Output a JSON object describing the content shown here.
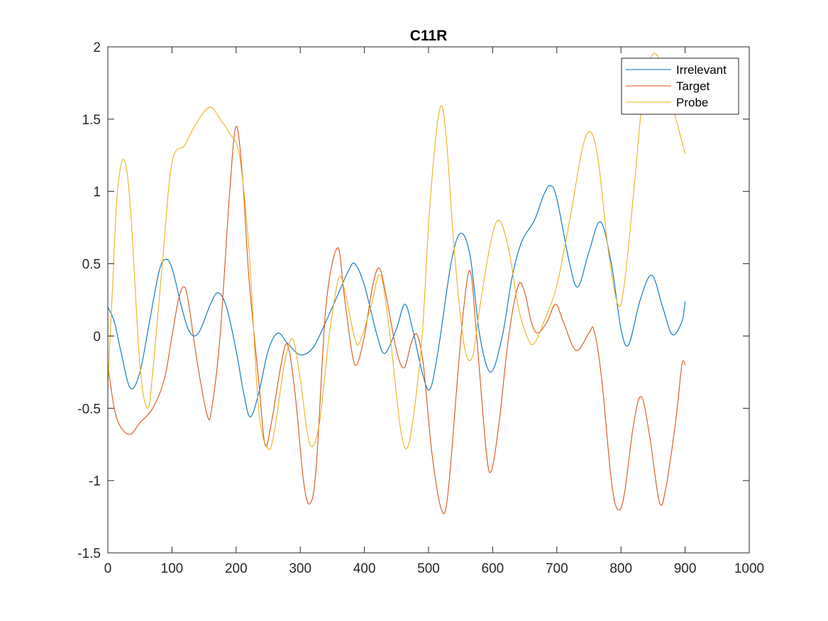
{
  "chart_data": {
    "type": "line",
    "title": "C11R",
    "xlabel": "",
    "ylabel": "",
    "xlim": [
      0,
      1000
    ],
    "ylim": [
      -1.5,
      2
    ],
    "xticks": [
      0,
      100,
      200,
      300,
      400,
      500,
      600,
      700,
      800,
      900,
      1000
    ],
    "yticks": [
      -1.5,
      -1,
      -0.5,
      0,
      0.5,
      1,
      1.5,
      2
    ],
    "xtick_labels": [
      "0",
      "100",
      "200",
      "300",
      "400",
      "500",
      "600",
      "700",
      "800",
      "900",
      "1000"
    ],
    "ytick_labels": [
      "-1.5",
      "-1",
      "-0.5",
      "0",
      "0.5",
      "1",
      "1.5",
      "2"
    ],
    "grid": false,
    "legend_position": "top-right",
    "series": [
      {
        "name": "Irrelevant",
        "color": "#0072BD",
        "points": [
          [
            0,
            0.2
          ],
          [
            10,
            0.1
          ],
          [
            20,
            -0.1
          ],
          [
            35,
            -0.36
          ],
          [
            50,
            -0.25
          ],
          [
            65,
            0.1
          ],
          [
            80,
            0.45
          ],
          [
            90,
            0.53
          ],
          [
            100,
            0.47
          ],
          [
            115,
            0.2
          ],
          [
            125,
            0.05
          ],
          [
            135,
            0.0
          ],
          [
            145,
            0.05
          ],
          [
            160,
            0.22
          ],
          [
            172,
            0.3
          ],
          [
            185,
            0.2
          ],
          [
            200,
            -0.1
          ],
          [
            212,
            -0.4
          ],
          [
            222,
            -0.56
          ],
          [
            235,
            -0.4
          ],
          [
            250,
            -0.1
          ],
          [
            265,
            0.02
          ],
          [
            280,
            -0.05
          ],
          [
            300,
            -0.13
          ],
          [
            320,
            -0.08
          ],
          [
            340,
            0.1
          ],
          [
            360,
            0.3
          ],
          [
            375,
            0.45
          ],
          [
            385,
            0.5
          ],
          [
            400,
            0.35
          ],
          [
            420,
            0.0
          ],
          [
            432,
            -0.12
          ],
          [
            450,
            0.05
          ],
          [
            463,
            0.22
          ],
          [
            475,
            0.05
          ],
          [
            490,
            -0.25
          ],
          [
            502,
            -0.37
          ],
          [
            515,
            -0.1
          ],
          [
            535,
            0.5
          ],
          [
            550,
            0.71
          ],
          [
            565,
            0.55
          ],
          [
            580,
            0.0
          ],
          [
            597,
            -0.25
          ],
          [
            615,
            0.0
          ],
          [
            630,
            0.4
          ],
          [
            645,
            0.65
          ],
          [
            665,
            0.8
          ],
          [
            680,
            0.98
          ],
          [
            690,
            1.04
          ],
          [
            700,
            0.95
          ],
          [
            720,
            0.5
          ],
          [
            733,
            0.34
          ],
          [
            750,
            0.58
          ],
          [
            768,
            0.79
          ],
          [
            785,
            0.5
          ],
          [
            800,
            0.05
          ],
          [
            812,
            -0.06
          ],
          [
            830,
            0.25
          ],
          [
            848,
            0.42
          ],
          [
            865,
            0.2
          ],
          [
            880,
            0.01
          ],
          [
            895,
            0.1
          ],
          [
            900,
            0.24
          ]
        ]
      },
      {
        "name": "Target",
        "color": "#D95319",
        "points": [
          [
            0,
            -0.2
          ],
          [
            10,
            -0.5
          ],
          [
            20,
            -0.63
          ],
          [
            35,
            -0.68
          ],
          [
            50,
            -0.6
          ],
          [
            70,
            -0.5
          ],
          [
            88,
            -0.3
          ],
          [
            100,
            0.0
          ],
          [
            110,
            0.25
          ],
          [
            118,
            0.34
          ],
          [
            125,
            0.25
          ],
          [
            140,
            -0.2
          ],
          [
            155,
            -0.55
          ],
          [
            162,
            -0.5
          ],
          [
            175,
            0.0
          ],
          [
            190,
            1.0
          ],
          [
            200,
            1.45
          ],
          [
            210,
            1.1
          ],
          [
            220,
            0.4
          ],
          [
            235,
            -0.3
          ],
          [
            245,
            -0.75
          ],
          [
            255,
            -0.6
          ],
          [
            270,
            -0.2
          ],
          [
            280,
            -0.06
          ],
          [
            292,
            -0.4
          ],
          [
            305,
            -1.0
          ],
          [
            315,
            -1.16
          ],
          [
            325,
            -0.9
          ],
          [
            340,
            0.2
          ],
          [
            358,
            0.61
          ],
          [
            368,
            0.3
          ],
          [
            380,
            -0.1
          ],
          [
            388,
            -0.2
          ],
          [
            400,
            0.0
          ],
          [
            413,
            0.35
          ],
          [
            423,
            0.47
          ],
          [
            433,
            0.3
          ],
          [
            450,
            -0.1
          ],
          [
            462,
            -0.22
          ],
          [
            473,
            -0.05
          ],
          [
            482,
            0.01
          ],
          [
            492,
            -0.2
          ],
          [
            505,
            -0.8
          ],
          [
            520,
            -1.2
          ],
          [
            530,
            -1.1
          ],
          [
            545,
            -0.3
          ],
          [
            555,
            0.2
          ],
          [
            565,
            0.45
          ],
          [
            575,
            0.0
          ],
          [
            590,
            -0.8
          ],
          [
            598,
            -0.93
          ],
          [
            610,
            -0.6
          ],
          [
            625,
            0.0
          ],
          [
            640,
            0.35
          ],
          [
            650,
            0.3
          ],
          [
            660,
            0.1
          ],
          [
            670,
            0.02
          ],
          [
            685,
            0.1
          ],
          [
            698,
            0.22
          ],
          [
            710,
            0.1
          ],
          [
            730,
            -0.1
          ],
          [
            750,
            0.02
          ],
          [
            758,
            0.04
          ],
          [
            770,
            -0.3
          ],
          [
            785,
            -1.0
          ],
          [
            795,
            -1.2
          ],
          [
            805,
            -1.1
          ],
          [
            820,
            -0.6
          ],
          [
            832,
            -0.42
          ],
          [
            845,
            -0.7
          ],
          [
            860,
            -1.15
          ],
          [
            870,
            -1.05
          ],
          [
            885,
            -0.6
          ],
          [
            895,
            -0.2
          ],
          [
            900,
            -0.2
          ]
        ]
      },
      {
        "name": "Probe",
        "color": "#EDB120",
        "points": [
          [
            0,
            -0.35
          ],
          [
            8,
            0.4
          ],
          [
            15,
            1.0
          ],
          [
            25,
            1.22
          ],
          [
            35,
            0.9
          ],
          [
            50,
            -0.2
          ],
          [
            62,
            -0.5
          ],
          [
            70,
            -0.25
          ],
          [
            85,
            0.5
          ],
          [
            100,
            1.2
          ],
          [
            120,
            1.32
          ],
          [
            135,
            1.45
          ],
          [
            150,
            1.55
          ],
          [
            162,
            1.58
          ],
          [
            175,
            1.5
          ],
          [
            190,
            1.4
          ],
          [
            205,
            1.25
          ],
          [
            220,
            0.6
          ],
          [
            235,
            -0.5
          ],
          [
            250,
            -0.78
          ],
          [
            260,
            -0.65
          ],
          [
            275,
            -0.2
          ],
          [
            288,
            -0.02
          ],
          [
            300,
            -0.3
          ],
          [
            315,
            -0.75
          ],
          [
            330,
            -0.6
          ],
          [
            345,
            0.0
          ],
          [
            360,
            0.4
          ],
          [
            370,
            0.3
          ],
          [
            385,
            -0.02
          ],
          [
            393,
            -0.04
          ],
          [
            410,
            0.2
          ],
          [
            425,
            0.42
          ],
          [
            440,
            0.0
          ],
          [
            455,
            -0.6
          ],
          [
            465,
            -0.78
          ],
          [
            475,
            -0.6
          ],
          [
            490,
            0.0
          ],
          [
            502,
            0.9
          ],
          [
            517,
            1.56
          ],
          [
            527,
            1.4
          ],
          [
            540,
            0.6
          ],
          [
            555,
            -0.05
          ],
          [
            568,
            -0.15
          ],
          [
            580,
            0.2
          ],
          [
            597,
            0.65
          ],
          [
            610,
            0.8
          ],
          [
            625,
            0.6
          ],
          [
            640,
            0.2
          ],
          [
            655,
            -0.02
          ],
          [
            665,
            -0.05
          ],
          [
            680,
            0.1
          ],
          [
            700,
            0.35
          ],
          [
            720,
            0.8
          ],
          [
            740,
            1.3
          ],
          [
            753,
            1.41
          ],
          [
            765,
            1.2
          ],
          [
            780,
            0.6
          ],
          [
            795,
            0.22
          ],
          [
            805,
            0.35
          ],
          [
            820,
            1.0
          ],
          [
            835,
            1.7
          ],
          [
            850,
            1.95
          ],
          [
            865,
            1.85
          ],
          [
            880,
            1.6
          ],
          [
            900,
            1.26
          ]
        ]
      }
    ]
  }
}
